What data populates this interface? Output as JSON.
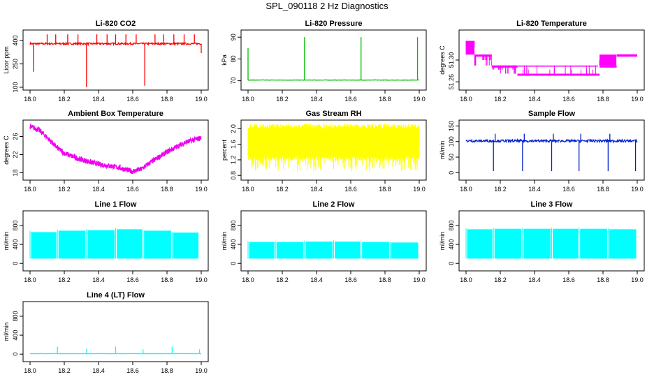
{
  "page_title": "SPL_090118  2 Hz Diagnostics",
  "chart_data": [
    {
      "type": "line",
      "title": "Li-820 CO2",
      "ylabel": "Licor ppm",
      "xlim": [
        18.0,
        19.0
      ],
      "ylim": [
        100,
        450
      ],
      "xticks": [
        "18.0",
        "18.2",
        "18.4",
        "18.6",
        "18.8",
        "19.0"
      ],
      "yticks": [
        "100",
        "250",
        "400"
      ],
      "ytick_values": [
        100,
        250,
        400
      ],
      "color": "#ff0000",
      "pattern": "spiky",
      "base": 380,
      "noise": 6,
      "spikes": [
        [
          18.02,
          200
        ],
        [
          18.1,
          440
        ],
        [
          18.15,
          440
        ],
        [
          18.22,
          440
        ],
        [
          18.28,
          440
        ],
        [
          18.33,
          100
        ],
        [
          18.39,
          440
        ],
        [
          18.45,
          440
        ],
        [
          18.5,
          440
        ],
        [
          18.56,
          440
        ],
        [
          18.62,
          440
        ],
        [
          18.67,
          110
        ],
        [
          18.73,
          440
        ],
        [
          18.78,
          440
        ],
        [
          18.84,
          440
        ],
        [
          18.9,
          440
        ],
        [
          18.96,
          440
        ],
        [
          19.0,
          320
        ]
      ]
    },
    {
      "type": "line",
      "title": "Li-820 Pressure",
      "ylabel": "kPa",
      "xlim": [
        18.0,
        19.0
      ],
      "ylim": [
        67,
        92
      ],
      "xticks": [
        "18.0",
        "18.2",
        "18.4",
        "18.6",
        "18.8",
        "19.0"
      ],
      "yticks": [
        "70",
        "80",
        "90"
      ],
      "ytick_values": [
        70,
        80,
        90
      ],
      "color": "#00bb00",
      "pattern": "spiky",
      "base": 70.3,
      "noise": 0.1,
      "spikes": [
        [
          18.0,
          85
        ],
        [
          18.33,
          90
        ],
        [
          18.66,
          90
        ],
        [
          18.99,
          90
        ]
      ]
    },
    {
      "type": "line",
      "title": "Li-820 Temperature",
      "ylabel": "degrees C",
      "xlim": [
        18.0,
        19.0
      ],
      "ylim": [
        51.25,
        51.35
      ],
      "xticks": [
        "18.0",
        "18.2",
        "18.4",
        "18.6",
        "18.8",
        "19.0"
      ],
      "yticks": [
        "51.26",
        "51.30"
      ],
      "ytick_values": [
        51.26,
        51.3
      ],
      "color": "#ff00ff",
      "pattern": "step",
      "steps": [
        [
          18.0,
          51.335
        ],
        [
          18.05,
          51.31
        ],
        [
          18.15,
          51.29
        ],
        [
          18.3,
          51.275
        ],
        [
          18.78,
          51.29
        ],
        [
          18.88,
          51.31
        ],
        [
          19.0,
          51.31
        ]
      ]
    },
    {
      "type": "line",
      "title": "Ambient Box Temperature",
      "ylabel": "degrees C",
      "xlim": [
        18.0,
        19.0
      ],
      "ylim": [
        17,
        29
      ],
      "xticks": [
        "18.0",
        "18.2",
        "18.4",
        "18.6",
        "18.8",
        "19.0"
      ],
      "yticks": [
        "18",
        "22",
        "26"
      ],
      "ytick_values": [
        18,
        22,
        26
      ],
      "color": "#ee00ee",
      "pattern": "curve",
      "noise": 0.6,
      "points": [
        [
          18.0,
          28.2
        ],
        [
          18.05,
          27.5
        ],
        [
          18.1,
          25.8
        ],
        [
          18.15,
          23.8
        ],
        [
          18.2,
          22.3
        ],
        [
          18.3,
          20.9
        ],
        [
          18.4,
          19.9
        ],
        [
          18.5,
          19.3
        ],
        [
          18.6,
          18.3
        ],
        [
          18.65,
          18.8
        ],
        [
          18.7,
          20.2
        ],
        [
          18.8,
          22.6
        ],
        [
          18.9,
          24.6
        ],
        [
          19.0,
          25.7
        ]
      ]
    },
    {
      "type": "line",
      "title": "Gas Stream RH",
      "ylabel": "percent",
      "xlim": [
        18.0,
        19.0
      ],
      "ylim": [
        0.75,
        2.15
      ],
      "xticks": [
        "18.0",
        "18.2",
        "18.4",
        "18.6",
        "18.8",
        "19.0"
      ],
      "yticks": [
        "0.8",
        "1.2",
        "1.6",
        "2.0"
      ],
      "ytick_values": [
        0.8,
        1.2,
        1.6,
        2.0
      ],
      "color": "#ffff00",
      "pattern": "band",
      "lo": 1.3,
      "hi": 2.0,
      "extreme": 0.9
    },
    {
      "type": "line",
      "title": "Sample Flow",
      "ylabel": "ml/min",
      "xlim": [
        18.0,
        19.0
      ],
      "ylim": [
        -15,
        160
      ],
      "xticks": [
        "18.0",
        "18.2",
        "18.4",
        "18.6",
        "18.8",
        "19.0"
      ],
      "yticks": [
        "0",
        "50",
        "100",
        "150"
      ],
      "ytick_values": [
        0,
        50,
        100,
        150
      ],
      "color": "#0022cc",
      "pattern": "spiky",
      "base": 102,
      "noise": 4,
      "spikes": [
        [
          18.16,
          5
        ],
        [
          18.33,
          5
        ],
        [
          18.5,
          5
        ],
        [
          18.66,
          5
        ],
        [
          18.83,
          5
        ],
        [
          18.99,
          5
        ],
        [
          18.17,
          125
        ],
        [
          18.34,
          125
        ],
        [
          18.51,
          125
        ],
        [
          18.67,
          125
        ],
        [
          18.84,
          125
        ]
      ]
    },
    {
      "type": "line",
      "title": "Line 1 Flow",
      "ylabel": "ml/min",
      "xlim": [
        18.0,
        19.0
      ],
      "ylim": [
        -100,
        1050
      ],
      "xticks": [
        "18.0",
        "18.2",
        "18.4",
        "18.6",
        "18.8",
        "19.0"
      ],
      "yticks": [
        "0",
        "400",
        "800"
      ],
      "ytick_values": [
        0,
        400,
        800
      ],
      "color": "#00ffff",
      "pattern": "block",
      "lo": 100,
      "segments": [
        [
          18.0,
          18.16,
          660
        ],
        [
          18.16,
          18.33,
          690
        ],
        [
          18.33,
          18.5,
          700
        ],
        [
          18.5,
          18.66,
          720
        ],
        [
          18.66,
          18.83,
          690
        ],
        [
          18.83,
          18.99,
          650
        ]
      ]
    },
    {
      "type": "line",
      "title": "Line 2 Flow",
      "ylabel": "ml/min",
      "xlim": [
        18.0,
        19.0
      ],
      "ylim": [
        -100,
        1050
      ],
      "xticks": [
        "18.0",
        "18.2",
        "18.4",
        "18.6",
        "18.8",
        "19.0"
      ],
      "yticks": [
        "0",
        "400",
        "800"
      ],
      "ytick_values": [
        0,
        400,
        800
      ],
      "color": "#00ffff",
      "pattern": "block",
      "lo": 100,
      "segments": [
        [
          18.0,
          18.16,
          450
        ],
        [
          18.16,
          18.33,
          450
        ],
        [
          18.33,
          18.5,
          460
        ],
        [
          18.5,
          18.66,
          460
        ],
        [
          18.66,
          18.83,
          450
        ],
        [
          18.83,
          19.0,
          440
        ]
      ]
    },
    {
      "type": "line",
      "title": "Line 3 Flow",
      "ylabel": "ml/min",
      "xlim": [
        18.0,
        19.0
      ],
      "ylim": [
        -100,
        1050
      ],
      "xticks": [
        "18.0",
        "18.2",
        "18.4",
        "18.6",
        "18.8",
        "19.0"
      ],
      "yticks": [
        "0",
        "400",
        "800"
      ],
      "ytick_values": [
        0,
        400,
        800
      ],
      "color": "#00ffff",
      "pattern": "block",
      "lo": 100,
      "segments": [
        [
          18.0,
          18.16,
          720
        ],
        [
          18.16,
          18.33,
          730
        ],
        [
          18.33,
          18.5,
          730
        ],
        [
          18.5,
          18.66,
          730
        ],
        [
          18.66,
          18.83,
          730
        ],
        [
          18.83,
          19.0,
          720
        ]
      ]
    },
    {
      "type": "line",
      "title": "Line 4 (LT) Flow",
      "ylabel": "ml/min",
      "xlim": [
        18.0,
        19.0
      ],
      "ylim": [
        -100,
        1050
      ],
      "xticks": [
        "18.0",
        "18.2",
        "18.4",
        "18.6",
        "18.8",
        "19.0"
      ],
      "yticks": [
        "0",
        "400",
        "800"
      ],
      "ytick_values": [
        0,
        400,
        800
      ],
      "color": "#00ffff",
      "pattern": "spiky",
      "base": 10,
      "noise": 4,
      "spikes": [
        [
          18.16,
          160
        ],
        [
          18.33,
          110
        ],
        [
          18.5,
          160
        ],
        [
          18.66,
          100
        ],
        [
          18.83,
          160
        ],
        [
          18.99,
          100
        ]
      ]
    }
  ]
}
